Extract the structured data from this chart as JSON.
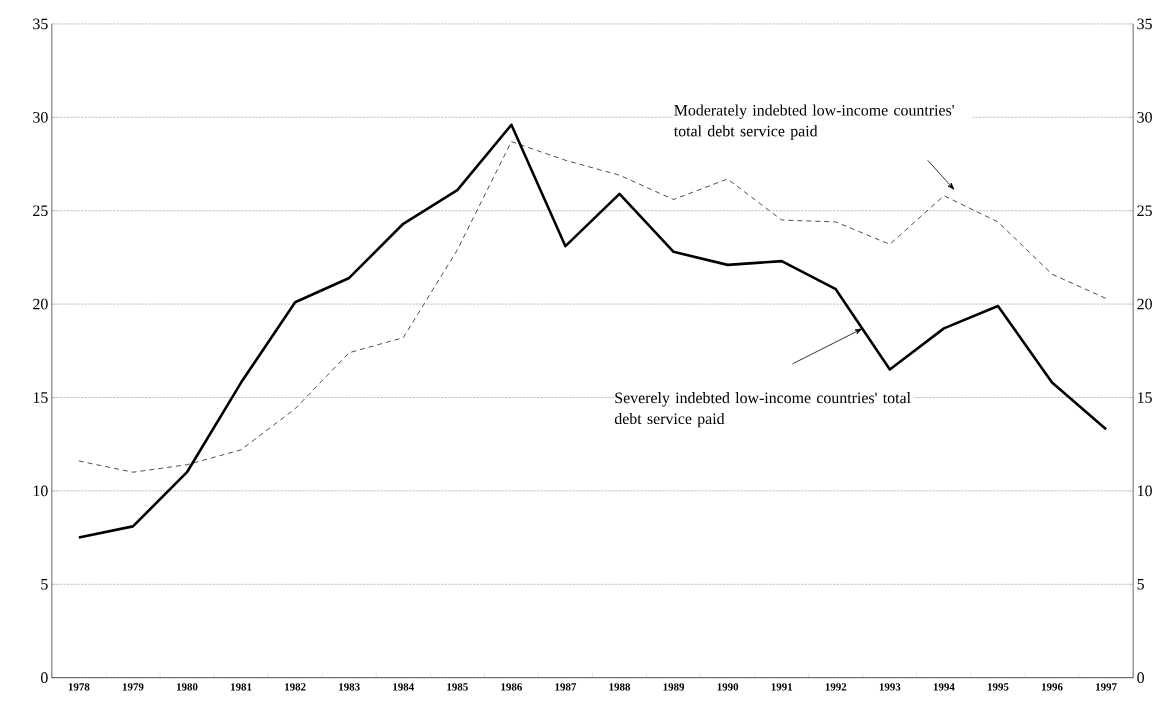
{
  "chart_data": {
    "type": "line",
    "categories": [
      "1978",
      "1979",
      "1980",
      "1981",
      "1982",
      "1983",
      "1984",
      "1985",
      "1986",
      "1987",
      "1988",
      "1989",
      "1990",
      "1991",
      "1992",
      "1993",
      "1994",
      "1995",
      "1996",
      "1997"
    ],
    "series": [
      {
        "color": "#000000",
        "line_style": "solid",
        "values": [
          7.5,
          8.1,
          11.0,
          15.8,
          20.1,
          21.4,
          24.3,
          26.1,
          29.6,
          23.1,
          25.9,
          22.8,
          22.1,
          22.3,
          20.8,
          16.5,
          18.7,
          19.9,
          15.8,
          13.3
        ]
      },
      {
        "color": "#000000",
        "line_style": "dashed",
        "values": [
          11.6,
          11.0,
          11.4,
          12.2,
          14.4,
          17.4,
          18.2,
          22.9,
          28.7,
          27.7,
          26.9,
          25.6,
          26.7,
          24.5,
          24.4,
          23.2,
          25.8,
          24.4,
          21.6,
          20.3
        ]
      }
    ],
    "ylim": [
      0,
      35
    ],
    "yticks": [
      0,
      5,
      10,
      15,
      20,
      25,
      30,
      35
    ],
    "y2lim": [
      0,
      35
    ],
    "y2ticks": [
      0,
      5,
      10,
      15,
      20,
      25,
      30,
      35
    ],
    "grid": "y",
    "marker": "none",
    "annotations": [
      "Moderately indebted low-income countries' total debt service paid",
      "Severely indebted low-income countries' total debt service paid"
    ]
  }
}
